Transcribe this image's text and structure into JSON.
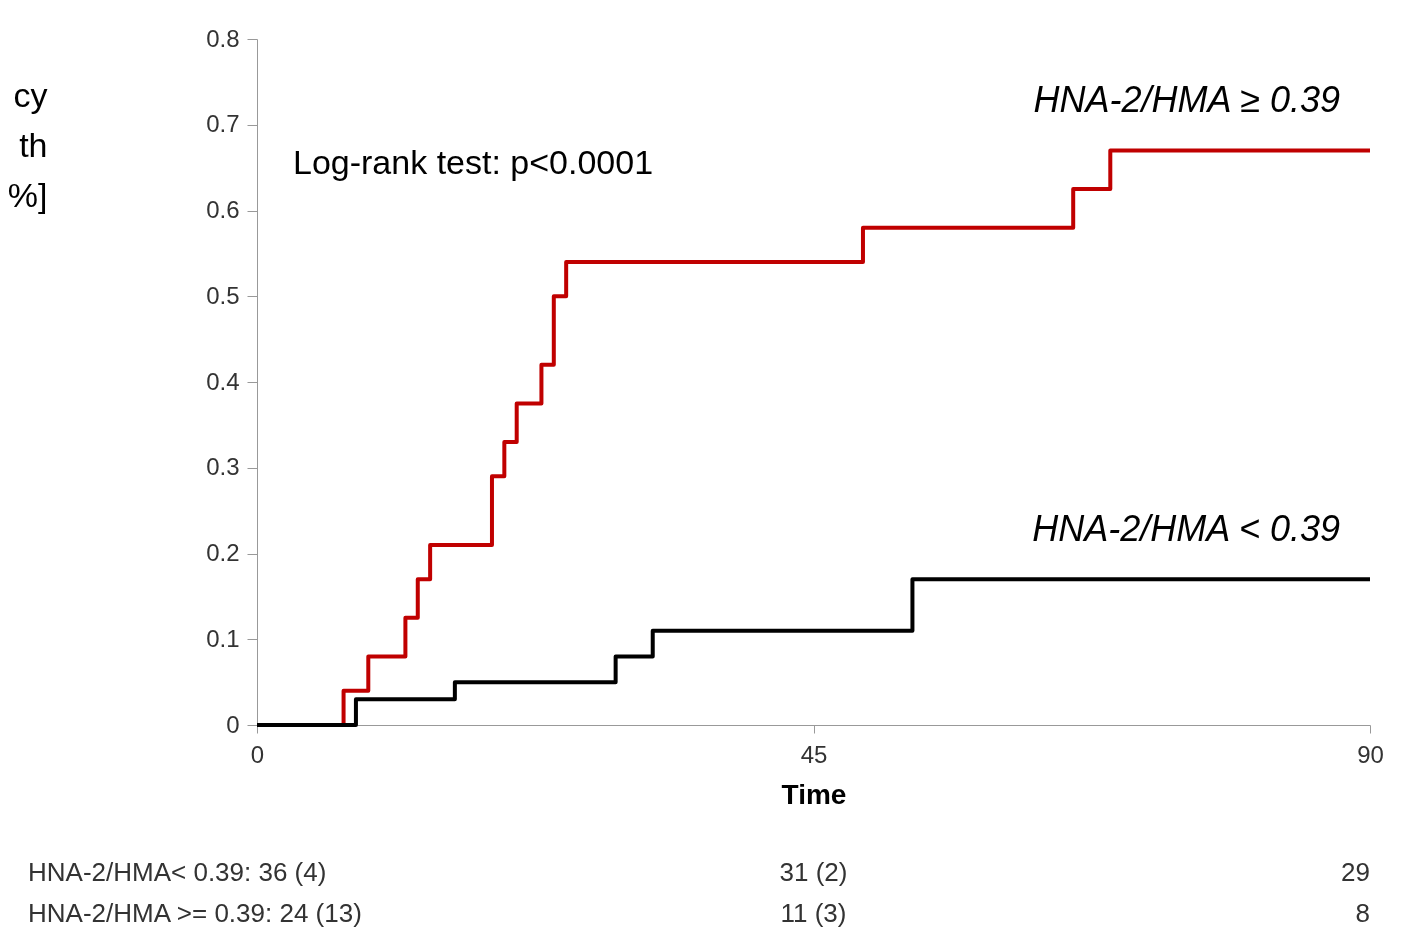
{
  "chart_data": {
    "type": "step",
    "xlabel": "Time",
    "ylabel": "cy\nth\n%]",
    "xlim": [
      0,
      90
    ],
    "xticks": [
      0,
      45,
      90
    ],
    "ylim": [
      0,
      0.8
    ],
    "yticks": [
      0,
      0.1,
      0.2,
      0.3,
      0.4,
      0.5,
      0.6,
      0.7,
      0.8
    ],
    "series": [
      {
        "name": "HNA-2/HMA ≥ 0.39",
        "color": "#c00000",
        "x": [
          0,
          7,
          9,
          12,
          13,
          14,
          19,
          20,
          21,
          23,
          24,
          25,
          49,
          66,
          69,
          90
        ],
        "values": [
          0,
          0.04,
          0.08,
          0.125,
          0.17,
          0.21,
          0.29,
          0.33,
          0.375,
          0.42,
          0.5,
          0.54,
          0.58,
          0.625,
          0.67,
          0.67
        ]
      },
      {
        "name": "HNA-2/HMA < 0.39",
        "color": "#000000",
        "x": [
          0,
          8,
          16,
          29,
          32,
          53,
          90
        ],
        "values": [
          0,
          0.03,
          0.05,
          0.08,
          0.11,
          0.17,
          0.17
        ]
      }
    ],
    "annotations": [
      "Log-rank test: p<0.0001",
      "HNA-2/HMA< 0.39:   36 (4)",
      "31 (2)",
      "29",
      "HNA-2/HMA >= 0.39: 24 (13)",
      "11 (3)",
      "8"
    ]
  }
}
